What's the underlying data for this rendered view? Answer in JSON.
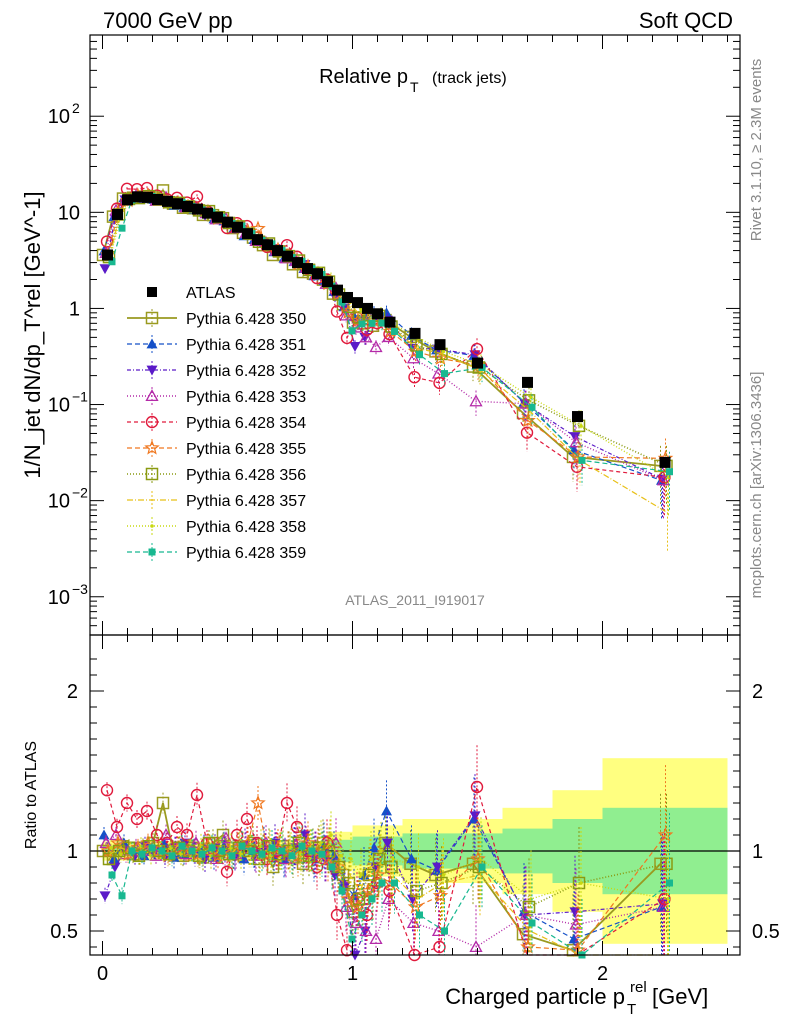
{
  "header": {
    "left": "7000 GeV pp",
    "right": "Soft QCD"
  },
  "side_labels": {
    "rivet": "Rivet 3.1.10, ≥ 2.3M events",
    "mcplots": "mcplots.cern.ch [arXiv:1306.3436]"
  },
  "plot_title": {
    "main": "Relative p",
    "sub": "T",
    "suffix": "(track jets)"
  },
  "analysis_id": "ATLAS_2011_I919017",
  "colors": {
    "band_inner": "#90ee90",
    "band_outer": "#ffff80",
    "atlas": "#000000"
  },
  "chart_data": [
    {
      "type": "scatter",
      "panel": "main",
      "ylabel": "1/N_jet dN/dp_T^rel [GeV^-1]",
      "yscale": "log",
      "ylim": [
        0.0004,
        700
      ],
      "xlim": [
        -0.05,
        2.55
      ],
      "yticks": [
        {
          "v": 0.001,
          "base": "10",
          "exp": "−3"
        },
        {
          "v": 0.01,
          "base": "10",
          "exp": "−2"
        },
        {
          "v": 0.1,
          "base": "10",
          "exp": "−1"
        },
        {
          "v": 1,
          "base": "1",
          "exp": ""
        },
        {
          "v": 10,
          "base": "10",
          "exp": ""
        },
        {
          "v": 100,
          "base": "10",
          "exp": "2"
        }
      ],
      "x": [
        0.02,
        0.06,
        0.1,
        0.14,
        0.18,
        0.22,
        0.26,
        0.3,
        0.34,
        0.38,
        0.42,
        0.46,
        0.5,
        0.54,
        0.58,
        0.62,
        0.66,
        0.7,
        0.74,
        0.78,
        0.82,
        0.86,
        0.9,
        0.94,
        0.98,
        1.02,
        1.06,
        1.1,
        1.15,
        1.25,
        1.35,
        1.5,
        1.7,
        1.9,
        2.25
      ],
      "reference": {
        "name": "ATLAS",
        "values": [
          3.6,
          9.5,
          13.5,
          14.5,
          14.3,
          13.6,
          13.0,
          12.3,
          11.5,
          10.8,
          9.8,
          8.9,
          7.9,
          7.0,
          6.0,
          5.2,
          4.6,
          4.0,
          3.5,
          3.0,
          2.6,
          2.3,
          1.9,
          1.55,
          1.3,
          1.15,
          1.0,
          0.88,
          0.72,
          0.55,
          0.42,
          0.27,
          0.17,
          0.075,
          0.025
        ]
      },
      "series": [
        {
          "name": "Pythia 6.428 350",
          "color": "#9a9a20",
          "marker": "square-open",
          "dash": "",
          "width": 1.8,
          "ratio": [
            1.0,
            0.95,
            1.03,
            0.98,
            1.02,
            1.05,
            1.3,
            1.0,
            0.97,
            1.02,
            0.96,
            1.05,
            1.1,
            0.98,
            1.02,
            1.05,
            0.99,
            0.9,
            1.03,
            0.96,
            0.92,
            1.0,
            1.05,
            0.92,
            0.85,
            0.62,
            0.7,
            0.75,
            1.05,
            0.92,
            0.85,
            0.92,
            0.48,
            0.38,
            0.92
          ]
        },
        {
          "name": "Pythia 6.428 351",
          "color": "#1550c8",
          "marker": "triangle-up",
          "dash": "5,3",
          "width": 1.2,
          "ratio": [
            1.1,
            0.95,
            1.05,
            1.0,
            0.97,
            1.0,
            1.05,
            0.96,
            0.98,
            1.0,
            1.02,
            0.96,
            1.03,
            0.98,
            0.95,
            1.0,
            1.04,
            0.97,
            0.95,
            1.02,
            1.0,
            0.95,
            1.03,
            0.97,
            0.8,
            0.72,
            0.85,
            1.02,
            1.25,
            0.95,
            0.88,
            1.2,
            0.62,
            0.45,
            0.65
          ]
        },
        {
          "name": "Pythia 6.428 352",
          "color": "#5a1ac8",
          "marker": "triangle-down",
          "dash": "4,2,1,2",
          "width": 1.2,
          "ratio": [
            0.72,
            0.9,
            1.0,
            0.97,
            1.03,
            1.0,
            0.96,
            1.02,
            1.05,
            0.98,
            0.95,
            1.02,
            1.0,
            0.97,
            1.04,
            0.98,
            1.0,
            1.05,
            0.96,
            1.02,
            1.1,
            0.98,
            0.95,
            0.85,
            0.78,
            0.35,
            0.5,
            0.9,
            1.05,
            0.7,
            0.9,
            1.22,
            0.6,
            0.62,
            0.67
          ]
        },
        {
          "name": "Pythia 6.428 353",
          "color": "#b42aa8",
          "marker": "triangle-open",
          "dash": "1,2",
          "width": 1.4,
          "ratio": [
            1.05,
            1.1,
            0.98,
            1.02,
            1.0,
            0.97,
            1.1,
            1.02,
            0.98,
            1.05,
            1.0,
            0.95,
            1.08,
            0.98,
            1.02,
            0.97,
            1.05,
            1.0,
            0.95,
            1.04,
            1.02,
            0.98,
            0.95,
            1.05,
            0.65,
            0.55,
            0.5,
            0.45,
            0.7,
            0.55,
            0.5,
            0.4,
            0.6,
            0.54,
            0.65
          ]
        },
        {
          "name": "Pythia 6.428 354",
          "color": "#e01a3c",
          "marker": "circle-open",
          "dash": "4,3",
          "width": 1.2,
          "ratio": [
            1.38,
            1.15,
            1.3,
            1.2,
            1.25,
            1.1,
            1.05,
            1.15,
            1.1,
            1.35,
            1.05,
            1.0,
            0.87,
            1.1,
            1.2,
            1.05,
            0.95,
            1.0,
            1.3,
            1.15,
            1.0,
            0.9,
            1.05,
            0.6,
            0.38,
            0.7,
            0.6,
            0.8,
            0.75,
            0.35,
            0.4,
            1.4,
            0.3,
            0.3,
            0.7
          ]
        },
        {
          "name": "Pythia 6.428 355",
          "color": "#f07820",
          "marker": "star",
          "dash": "5,3",
          "width": 1.2,
          "ratio": [
            1.0,
            1.05,
            0.98,
            1.02,
            1.05,
            1.0,
            0.97,
            1.02,
            1.0,
            0.98,
            1.03,
            0.97,
            1.0,
            1.02,
            1.05,
            1.3,
            0.98,
            1.02,
            1.0,
            0.97,
            1.05,
            1.0,
            0.95,
            0.9,
            0.7,
            0.65,
            0.75,
            0.85,
            0.8,
            0.65,
            0.72,
            0.95,
            0.4,
            0.38,
            1.1
          ]
        },
        {
          "name": "Pythia 6.428 356",
          "color": "#8a9a10",
          "marker": "square-open",
          "dash": "1,2",
          "width": 1.6,
          "ratio": [
            0.95,
            1.0,
            1.02,
            0.97,
            1.03,
            1.0,
            0.98,
            1.02,
            1.0,
            0.97,
            1.05,
            1.0,
            0.98,
            1.02,
            1.0,
            0.95,
            1.03,
            0.98,
            1.0,
            1.05,
            0.97,
            1.02,
            1.0,
            0.9,
            0.8,
            0.7,
            0.85,
            0.95,
            0.9,
            0.75,
            0.8,
            0.9,
            0.65,
            0.8,
            0.92
          ]
        },
        {
          "name": "Pythia 6.428 357",
          "color": "#e8c018",
          "marker": "none",
          "dash": "6,2,1,2",
          "width": 1.2,
          "ratio": [
            0.98,
            1.02,
            1.0,
            0.97,
            1.03,
            1.0,
            0.98,
            1.05,
            1.0,
            0.97,
            1.02,
            1.0,
            0.98,
            1.03,
            1.0,
            0.97,
            1.02,
            1.0,
            0.98,
            1.02,
            1.0,
            0.97,
            1.05,
            0.95,
            0.85,
            0.75,
            0.9,
            0.92,
            0.85,
            0.7,
            0.8,
            0.85,
            0.5,
            0.35,
            0.3
          ]
        },
        {
          "name": "Pythia 6.428 358",
          "color": "#c8d810",
          "marker": "dot",
          "dash": "1,2",
          "width": 1.4,
          "ratio": [
            1.02,
            0.98,
            1.0,
            1.03,
            0.97,
            1.0,
            1.02,
            0.98,
            1.0,
            1.03,
            0.97,
            1.0,
            1.02,
            0.98,
            1.0,
            1.03,
            0.97,
            1.0,
            1.02,
            0.98,
            1.0,
            1.05,
            1.1,
            0.97,
            0.95,
            0.85,
            0.95,
            1.0,
            0.95,
            0.9,
            0.85,
            0.95,
            0.7,
            0.8,
            0.7
          ]
        },
        {
          "name": "Pythia 6.428 359",
          "color": "#18b890",
          "marker": "square",
          "dash": "5,3",
          "width": 1.2,
          "ratio": [
            0.85,
            0.72,
            1.0,
            0.98,
            1.02,
            1.0,
            0.97,
            1.03,
            1.0,
            0.98,
            1.02,
            1.0,
            0.97,
            1.03,
            1.0,
            0.98,
            1.02,
            1.0,
            0.97,
            1.03,
            1.0,
            0.98,
            0.9,
            0.75,
            0.45,
            0.6,
            0.7,
            0.8,
            0.8,
            0.6,
            0.5,
            0.9,
            0.55,
            0.35,
            0.8
          ]
        }
      ]
    },
    {
      "type": "scatter",
      "panel": "ratio",
      "ylabel": "Ratio to ATLAS",
      "xlabel": "Charged particle p",
      "xlabel_sub": "T",
      "xlabel_sup": "rel",
      "xlabel_suffix": " [GeV]",
      "ylim": [
        0.35,
        2.35
      ],
      "xlim": [
        -0.05,
        2.55
      ],
      "yticks": [
        0.5,
        1,
        2
      ],
      "ytick_labels": [
        "0.5",
        "1",
        "2"
      ],
      "xticks": [
        0,
        1,
        2
      ],
      "xtick_labels": [
        "0",
        "1",
        "2"
      ],
      "band_edges": [
        0.0,
        0.9,
        1.0,
        1.2,
        1.6,
        1.8,
        2.0,
        2.5
      ],
      "band_inner": [
        0.03,
        0.07,
        0.09,
        0.11,
        0.14,
        0.2,
        0.27
      ],
      "band_outer": [
        0.06,
        0.12,
        0.16,
        0.2,
        0.27,
        0.38,
        0.58
      ]
    }
  ]
}
